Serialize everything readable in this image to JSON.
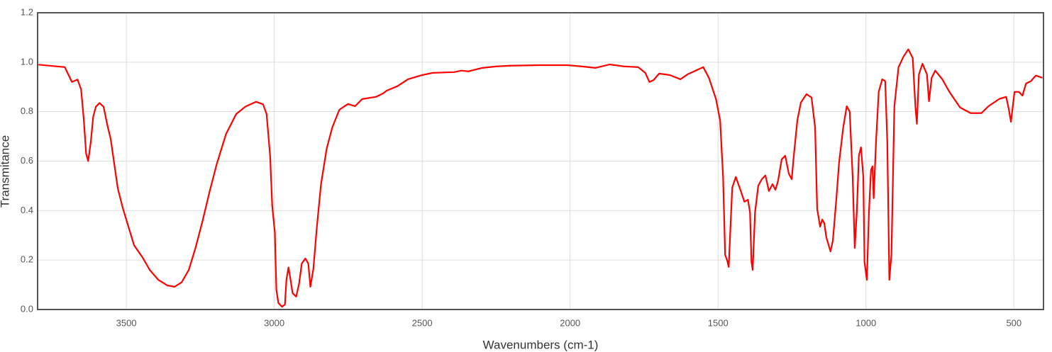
{
  "chart_data": {
    "type": "line",
    "x_label": "Wavenumbers (cm-1)",
    "y_label": "Transmitance",
    "xlim": [
      3800,
      400
    ],
    "ylim": [
      0,
      1.2
    ],
    "x_reversed": true,
    "grid": true,
    "xticks": [
      3500,
      3000,
      2500,
      2000,
      1500,
      1000,
      500
    ],
    "yticks": [
      {
        "value": 0,
        "label": "0.0"
      },
      0.2,
      0.4,
      0.6,
      0.8,
      {
        "value": 1,
        "label": "1.0"
      },
      1.2
    ],
    "series": [
      {
        "color": "#ff0000",
        "x": [
          3797,
          3708,
          3684,
          3665,
          3653,
          3644,
          3636,
          3629,
          3620,
          3612,
          3603,
          3591,
          3577,
          3565,
          3553,
          3541,
          3529,
          3512,
          3493,
          3474,
          3445,
          3421,
          3392,
          3361,
          3337,
          3313,
          3289,
          3266,
          3242,
          3218,
          3194,
          3163,
          3129,
          3098,
          3062,
          3038,
          3026,
          3014,
          3007,
          2998,
          2993,
          2986,
          2974,
          2964,
          2959,
          2952,
          2945,
          2938,
          2926,
          2916,
          2907,
          2895,
          2885,
          2878,
          2868,
          2856,
          2842,
          2823,
          2804,
          2780,
          2751,
          2727,
          2703,
          2656,
          2632,
          2620,
          2584,
          2548,
          2500,
          2464,
          2392,
          2368,
          2344,
          2297,
          2249,
          2201,
          2105,
          2010,
          1962,
          1914,
          1866,
          1818,
          1770,
          1746,
          1732,
          1718,
          1699,
          1663,
          1627,
          1603,
          1567,
          1550,
          1531,
          1507,
          1493,
          1483,
          1476,
          1469,
          1464,
          1459,
          1452,
          1440,
          1423,
          1411,
          1399,
          1392,
          1387,
          1383,
          1375,
          1364,
          1352,
          1340,
          1328,
          1316,
          1306,
          1297,
          1285,
          1273,
          1261,
          1251,
          1244,
          1232,
          1220,
          1201,
          1184,
          1172,
          1165,
          1155,
          1148,
          1141,
          1134,
          1120,
          1112,
          1100,
          1091,
          1077,
          1065,
          1055,
          1045,
          1038,
          1031,
          1024,
          1017,
          1009,
          1005,
          997,
          990,
          983,
          978,
          974,
          966,
          957,
          945,
          935,
          928,
          921,
          914,
          904,
          890,
          873,
          857,
          842,
          833,
          828,
          821,
          809,
          794,
          787,
          778,
          766,
          742,
          718,
          682,
          646,
          610,
          586,
          550,
          526,
          517,
          510,
          498,
          483,
          471,
          459,
          443,
          426,
          404
        ],
        "values": [
          0.99,
          0.98,
          0.92,
          0.93,
          0.89,
          0.77,
          0.63,
          0.6,
          0.68,
          0.78,
          0.82,
          0.835,
          0.82,
          0.75,
          0.69,
          0.59,
          0.49,
          0.41,
          0.335,
          0.26,
          0.21,
          0.16,
          0.12,
          0.097,
          0.092,
          0.11,
          0.16,
          0.25,
          0.36,
          0.48,
          0.59,
          0.71,
          0.79,
          0.82,
          0.84,
          0.83,
          0.79,
          0.62,
          0.42,
          0.31,
          0.08,
          0.026,
          0.011,
          0.02,
          0.12,
          0.17,
          0.12,
          0.066,
          0.052,
          0.106,
          0.186,
          0.206,
          0.186,
          0.092,
          0.163,
          0.335,
          0.507,
          0.65,
          0.736,
          0.808,
          0.831,
          0.822,
          0.851,
          0.86,
          0.874,
          0.885,
          0.903,
          0.931,
          0.948,
          0.957,
          0.96,
          0.966,
          0.963,
          0.977,
          0.983,
          0.986,
          0.988,
          0.988,
          0.983,
          0.977,
          0.991,
          0.983,
          0.98,
          0.957,
          0.92,
          0.928,
          0.954,
          0.948,
          0.931,
          0.951,
          0.971,
          0.98,
          0.937,
          0.851,
          0.765,
          0.536,
          0.221,
          0.198,
          0.172,
          0.307,
          0.493,
          0.536,
          0.479,
          0.436,
          0.444,
          0.393,
          0.192,
          0.16,
          0.393,
          0.501,
          0.527,
          0.542,
          0.479,
          0.507,
          0.484,
          0.521,
          0.607,
          0.622,
          0.55,
          0.527,
          0.622,
          0.765,
          0.837,
          0.871,
          0.857,
          0.736,
          0.407,
          0.335,
          0.364,
          0.35,
          0.292,
          0.235,
          0.278,
          0.45,
          0.593,
          0.736,
          0.822,
          0.8,
          0.536,
          0.249,
          0.393,
          0.622,
          0.656,
          0.536,
          0.192,
          0.12,
          0.393,
          0.564,
          0.579,
          0.45,
          0.679,
          0.88,
          0.931,
          0.923,
          0.679,
          0.12,
          0.221,
          0.822,
          0.98,
          1.023,
          1.052,
          1.017,
          0.822,
          0.751,
          0.951,
          0.994,
          0.951,
          0.842,
          0.937,
          0.966,
          0.931,
          0.88,
          0.817,
          0.794,
          0.794,
          0.822,
          0.851,
          0.86,
          0.808,
          0.759,
          0.88,
          0.88,
          0.865,
          0.914,
          0.923,
          0.946,
          0.937
        ]
      }
    ]
  }
}
